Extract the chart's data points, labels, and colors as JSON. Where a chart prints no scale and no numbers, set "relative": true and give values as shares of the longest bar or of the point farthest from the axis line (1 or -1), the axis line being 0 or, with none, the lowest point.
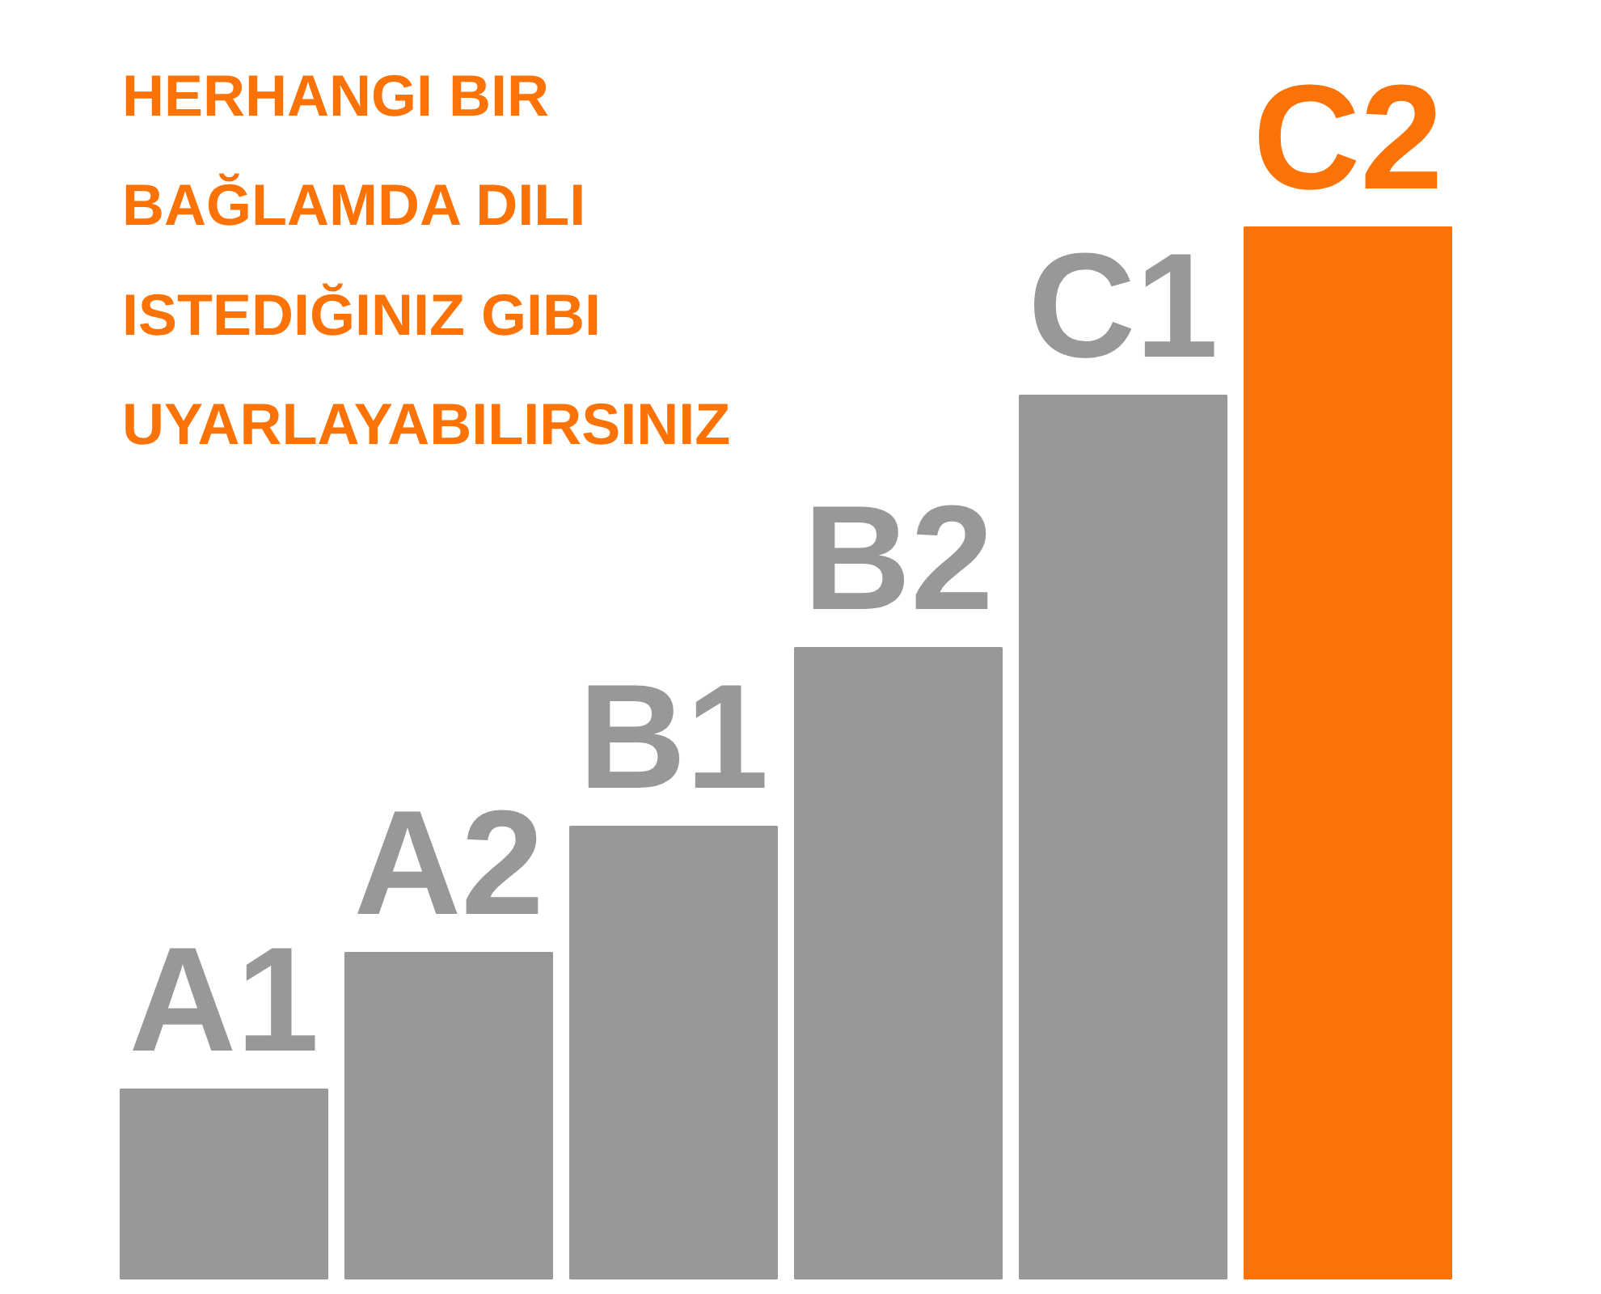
{
  "chart_data": {
    "type": "bar",
    "title": "HERHANGI BIR\nBAĞLAMDA DILI\nISTEDIĞINIZ GIBI\nUYARLAYABILIRSINIZ",
    "relative": true,
    "categories": [
      "A1",
      "A2",
      "B1",
      "B2",
      "C1",
      "C2"
    ],
    "values": [
      0.18,
      0.31,
      0.43,
      0.6,
      0.84,
      1.0
    ],
    "colors": [
      "#98979a",
      "#98979a",
      "#98979a",
      "#98979a",
      "#98979a",
      "#fb7306"
    ]
  }
}
